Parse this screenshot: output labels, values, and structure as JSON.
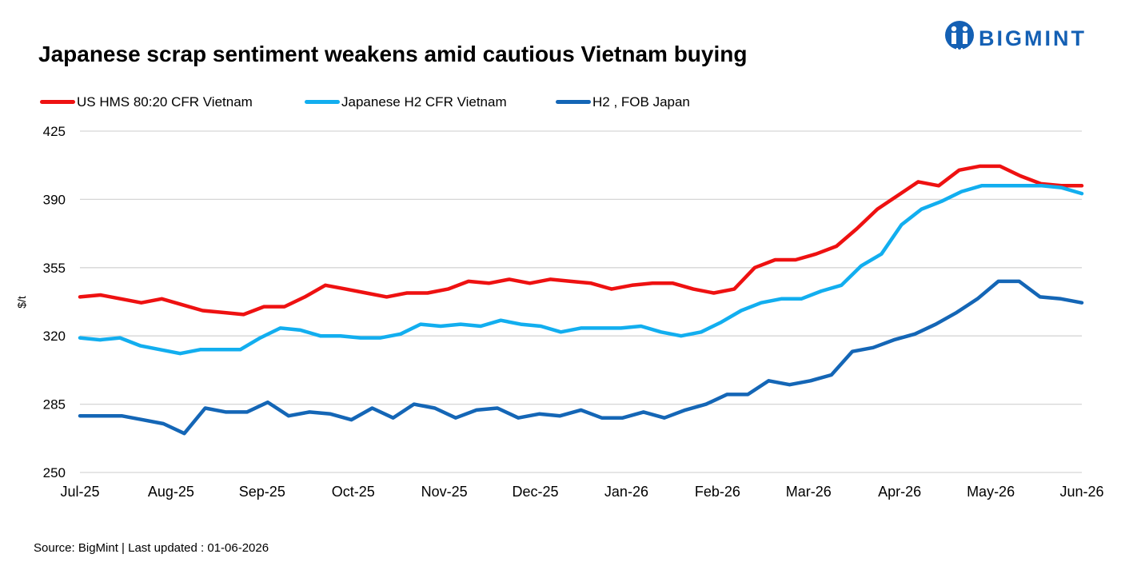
{
  "title": "Japanese scrap sentiment weakens amid cautious Vietnam buying",
  "logo": {
    "text": "BIGMINT",
    "color": "#1460b4"
  },
  "source": "Source: BigMint  | Last updated : 01-06-2026",
  "chart_data": {
    "type": "line",
    "title": "Japanese scrap sentiment weakens amid cautious Vietnam buying",
    "ylabel": "$/t",
    "ylim": [
      250,
      425
    ],
    "yticks": [
      250,
      285,
      320,
      355,
      390,
      425
    ],
    "x_tick_labels": [
      "Jul-25",
      "Aug-25",
      "Sep-25",
      "Oct-25",
      "Nov-25",
      "Dec-25",
      "Jan-26",
      "Feb-26",
      "Mar-26",
      "Apr-26",
      "May-26",
      "Jun-26"
    ],
    "grid": true,
    "legend_position": "top-left",
    "series": [
      {
        "name": "US HMS 80:20 CFR Vietnam",
        "color": "#ee1111",
        "values": [
          340,
          341,
          339,
          337,
          339,
          336,
          333,
          332,
          331,
          335,
          335,
          340,
          346,
          344,
          342,
          340,
          342,
          342,
          344,
          348,
          347,
          349,
          347,
          349,
          348,
          347,
          344,
          346,
          347,
          347,
          344,
          342,
          344,
          355,
          359,
          359,
          362,
          366,
          375,
          385,
          392,
          399,
          397,
          405,
          407,
          407,
          402,
          398,
          397,
          397
        ]
      },
      {
        "name": "Japanese H2 CFR Vietnam",
        "color": "#12aeef",
        "values": [
          319,
          318,
          319,
          315,
          313,
          311,
          313,
          313,
          313,
          319,
          324,
          323,
          320,
          320,
          319,
          319,
          321,
          326,
          325,
          326,
          325,
          328,
          326,
          325,
          322,
          324,
          324,
          324,
          325,
          322,
          320,
          322,
          327,
          333,
          337,
          339,
          339,
          343,
          346,
          356,
          362,
          377,
          385,
          389,
          394,
          397,
          397,
          397,
          397,
          396,
          393
        ]
      },
      {
        "name": "H2 , FOB Japan",
        "color": "#1466b6",
        "values": [
          279,
          279,
          279,
          277,
          275,
          270,
          283,
          281,
          281,
          286,
          279,
          281,
          280,
          277,
          283,
          278,
          285,
          283,
          278,
          282,
          283,
          278,
          280,
          279,
          282,
          278,
          278,
          281,
          278,
          282,
          285,
          290,
          290,
          297,
          295,
          297,
          300,
          312,
          314,
          318,
          321,
          326,
          332,
          339,
          348,
          348,
          340,
          339,
          337
        ]
      }
    ]
  }
}
